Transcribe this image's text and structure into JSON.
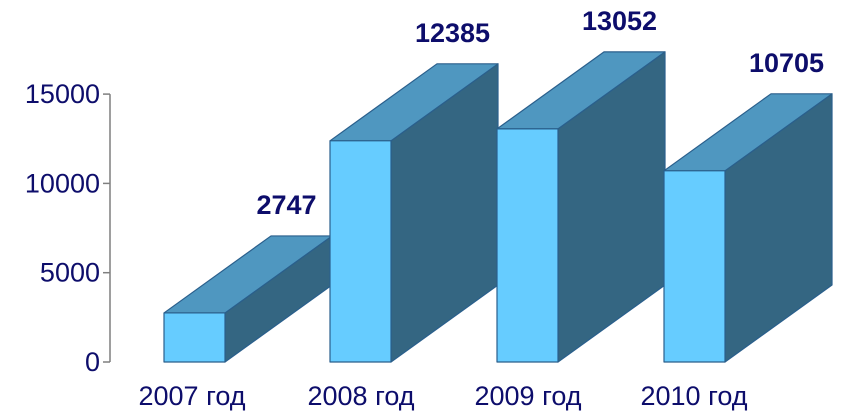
{
  "chart_data": {
    "type": "bar",
    "style": "3d",
    "categories": [
      "2007 год",
      "2008 год",
      "2009 год",
      "2010 год"
    ],
    "values": [
      2747,
      12385,
      13052,
      10705
    ],
    "y_ticks": [
      "0",
      "5000",
      "10000",
      "15000"
    ],
    "ylim": [
      0,
      15000
    ],
    "grid": false,
    "legend": "none",
    "colors": {
      "front": "#66ccff",
      "top": "#4f97c0",
      "side": "#346682",
      "label": "#0d0d6b",
      "axis": "#7f7f7f"
    }
  }
}
